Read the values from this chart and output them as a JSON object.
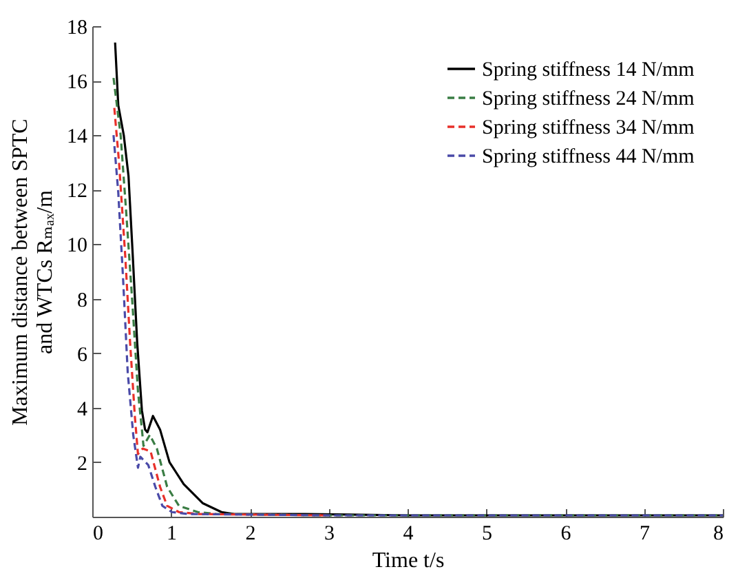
{
  "chart_data": {
    "type": "line",
    "xlabel": "Time t/s",
    "ylabel": "Maximum distance between SPTC\nand WTCs Rₘₐₓ/m",
    "xlim": [
      0,
      8
    ],
    "ylim": [
      0,
      18
    ],
    "xticks": [
      0,
      1,
      2,
      3,
      4,
      5,
      6,
      7,
      8
    ],
    "yticks": [
      2,
      4,
      6,
      8,
      10,
      12,
      14,
      16,
      18
    ],
    "grid": false,
    "legend": "top right",
    "marker": "none",
    "series": [
      {
        "name": "Spring stiffness 14 N/mm",
        "color": "#000000",
        "line_style": "solid",
        "x": [
          0.29,
          0.33,
          0.4,
          0.46,
          0.51,
          0.57,
          0.63,
          0.67,
          0.7,
          0.77,
          0.86,
          0.98,
          1.16,
          1.4,
          1.64,
          1.8,
          2.7,
          4,
          6,
          8
        ],
        "values": [
          17.4,
          15.1,
          14.0,
          12.5,
          9.8,
          6.4,
          3.9,
          3.2,
          3.1,
          3.7,
          3.2,
          2.0,
          1.2,
          0.5,
          0.17,
          0.1,
          0.1,
          0.05,
          0.05,
          0.05
        ]
      },
      {
        "name": "Spring stiffness 24 N/mm",
        "color": "#3a7d44",
        "line_style": "dashed",
        "x": [
          0.27,
          0.36,
          0.43,
          0.51,
          0.58,
          0.63,
          0.65,
          0.73,
          0.82,
          0.95,
          1.1,
          1.34,
          1.58,
          3,
          5,
          8
        ],
        "values": [
          16.1,
          14.0,
          11.2,
          7.8,
          4.6,
          3.2,
          2.6,
          3.0,
          2.5,
          1.1,
          0.4,
          0.17,
          0.1,
          0.05,
          0.05,
          0.05
        ]
      },
      {
        "name": "Spring stiffness 34 N/mm",
        "color": "#e8302a",
        "line_style": "dashed",
        "x": [
          0.28,
          0.34,
          0.42,
          0.48,
          0.54,
          0.58,
          0.64,
          0.74,
          0.86,
          0.95,
          1.1,
          1.34,
          2.96
        ],
        "values": [
          15.0,
          13.0,
          9.5,
          6.4,
          3.7,
          2.3,
          2.5,
          2.4,
          1.1,
          0.4,
          0.17,
          0.1,
          0.05
        ]
      },
      {
        "name": "Spring stiffness 44 N/mm",
        "color": "#4a4aa8",
        "line_style": "dashed",
        "x": [
          0.27,
          0.33,
          0.39,
          0.45,
          0.52,
          0.58,
          0.61,
          0.71,
          0.8,
          0.89,
          1.01,
          1.22,
          3,
          5,
          8
        ],
        "values": [
          14.0,
          11.9,
          8.8,
          5.3,
          3.0,
          1.8,
          2.2,
          1.9,
          1.1,
          0.4,
          0.17,
          0.1,
          0.05,
          0.05,
          0.05
        ]
      }
    ]
  }
}
